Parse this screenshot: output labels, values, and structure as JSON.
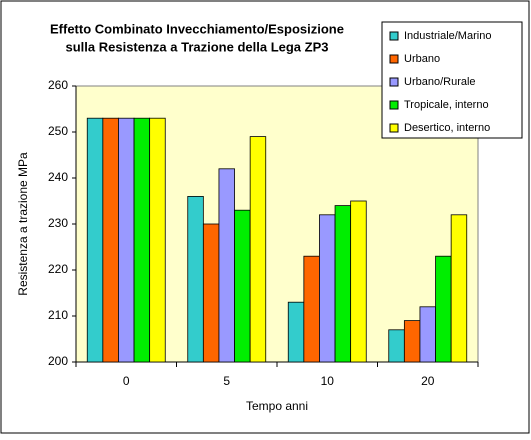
{
  "chart_data": {
    "type": "bar",
    "title": "Effetto Combinato Invecchiamento/Esposizione",
    "subtitle": "sulla Resistenza a Trazione della Lega ZP3",
    "x_label": "Tempo anni",
    "y_label": "Resistenza a trazione MPa",
    "categories": [
      "0",
      "5",
      "10",
      "20"
    ],
    "series": [
      {
        "name": "Industriale/Marino",
        "color": "#33cccc",
        "values": [
          253,
          236,
          213,
          207
        ]
      },
      {
        "name": "Urbano",
        "color": "#ff6600",
        "values": [
          253,
          230,
          223,
          209
        ]
      },
      {
        "name": "Urbano/Rurale",
        "color": "#9999ff",
        "values": [
          253,
          242,
          232,
          212
        ]
      },
      {
        "name": "Tropicale, interno",
        "color": "#00ee00",
        "values": [
          253,
          233,
          234,
          223
        ]
      },
      {
        "name": "Desertico, interno",
        "color": "#ffff00",
        "values": [
          253,
          249,
          235,
          232
        ]
      }
    ],
    "ylim": [
      200,
      260
    ],
    "yticks": [
      200,
      210,
      220,
      230,
      240,
      250,
      260
    ],
    "grid": false,
    "legend": "top-right"
  }
}
